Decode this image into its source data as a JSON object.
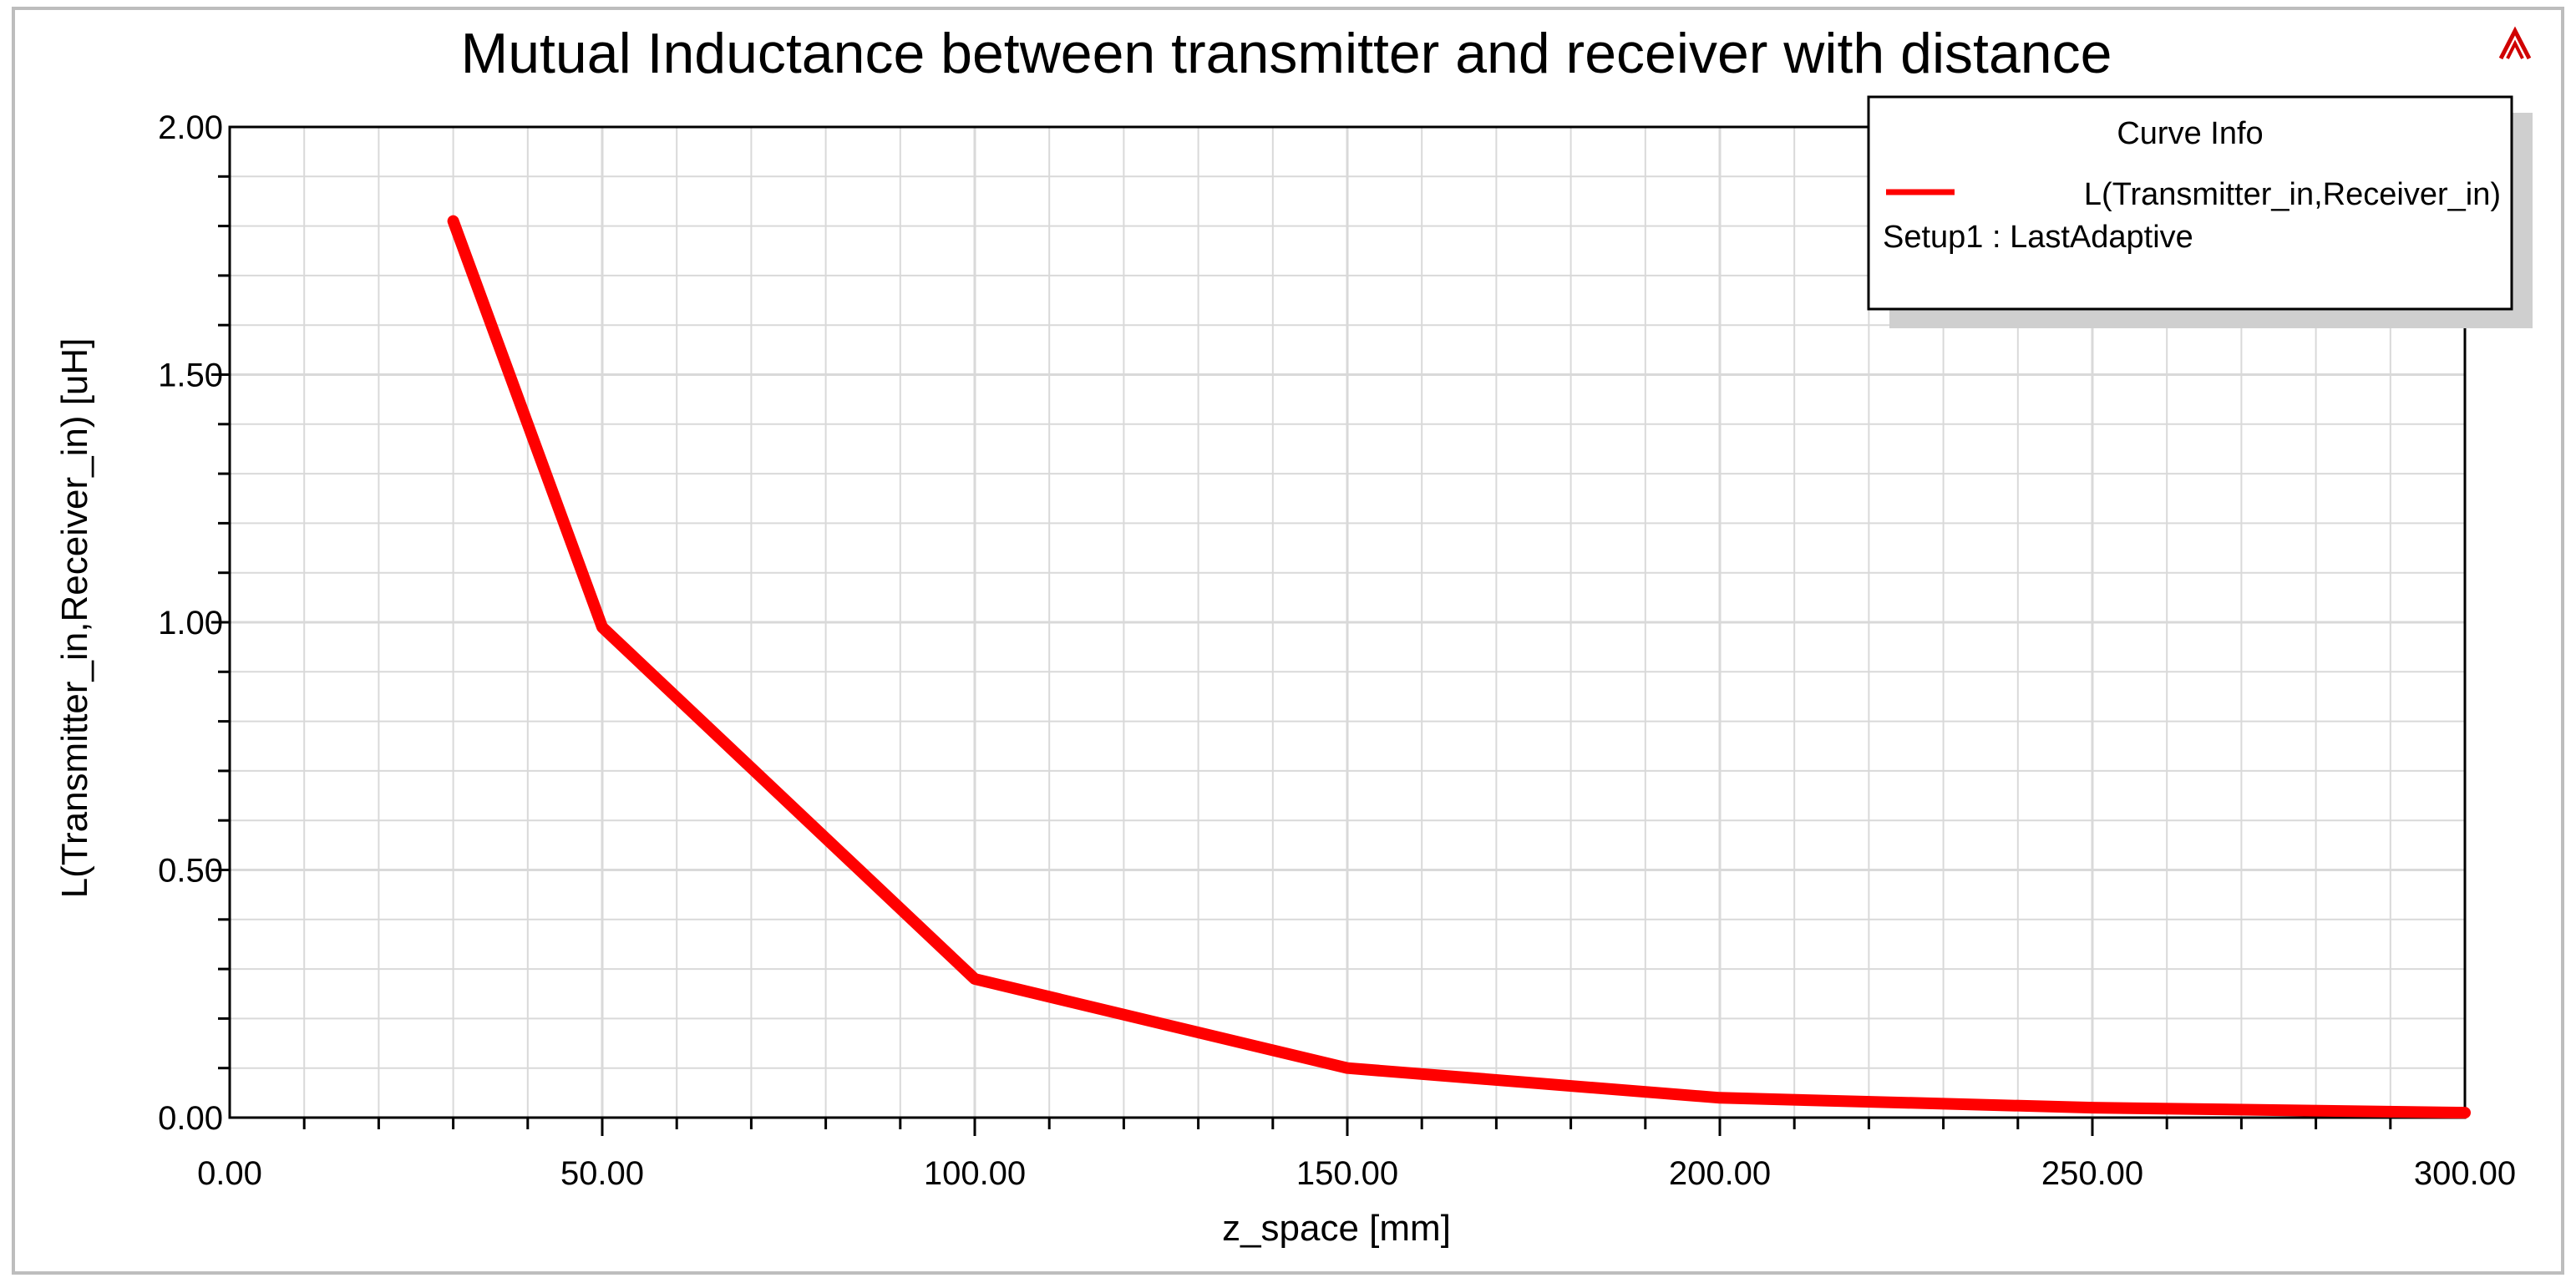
{
  "chart_data": {
    "type": "line",
    "title": "Mutual Inductance between transmitter and receiver with distance",
    "xlabel": "z_space [mm]",
    "ylabel": "L(Transmitter_in,Receiver_in) [uH]",
    "xlim": [
      0,
      300
    ],
    "ylim": [
      0,
      2
    ],
    "x_ticks": [
      "0.00",
      "50.00",
      "100.00",
      "150.00",
      "200.00",
      "250.00",
      "300.00"
    ],
    "y_ticks": [
      "0.00",
      "0.50",
      "1.00",
      "1.50",
      "2.00"
    ],
    "grid": true,
    "legend": {
      "title": "Curve Info",
      "placement": "top-right",
      "entries": [
        "L(Transmitter_in,Receiver_in)",
        "Setup1 : LastAdaptive"
      ]
    },
    "series": [
      {
        "name": "L(Transmitter_in,Receiver_in)",
        "color": "#ff0000",
        "x": [
          30,
          50,
          100,
          150,
          200,
          250,
          300
        ],
        "y": [
          1.81,
          0.99,
          0.28,
          0.1,
          0.04,
          0.02,
          0.01
        ]
      }
    ]
  },
  "colors": {
    "grid": "#d9d9d9",
    "axis": "#000000",
    "series": "#ff0000",
    "frame": "#bdbdbd"
  },
  "icons": {
    "corner": "ansys-logo-icon"
  }
}
